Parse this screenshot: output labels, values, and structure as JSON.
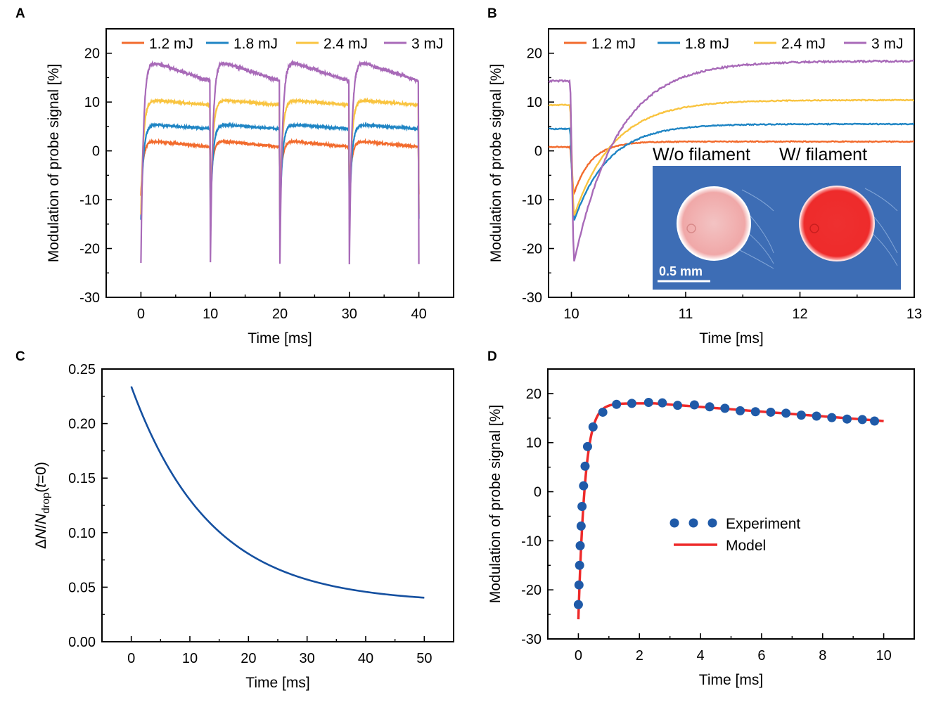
{
  "colors": {
    "e12": "#f26b2d",
    "e18": "#1f85c4",
    "e24": "#f9c440",
    "e30": "#a86ab8",
    "experiment": "#1f5aa8",
    "model": "#ee2a2a",
    "curveC": "#1550a0",
    "insetBg": "#3f6fb6"
  },
  "panels": {
    "A": {
      "label": "A"
    },
    "B": {
      "label": "B"
    },
    "C": {
      "label": "C"
    },
    "D": {
      "label": "D"
    }
  },
  "legendAB": [
    "1.2 mJ",
    "1.8 mJ",
    "2.4 mJ",
    "3 mJ"
  ],
  "inset": {
    "left_title": "W/o filament",
    "right_title": "W/ filament",
    "scale_label": "0.5 mm"
  },
  "chart_data": [
    {
      "id": "A",
      "type": "line",
      "title": "",
      "xlabel": "Time [ms]",
      "ylabel": "Modulation of probe signal [%]",
      "xlim": [
        -5,
        45
      ],
      "ylim": [
        -30,
        25
      ],
      "xticks": [
        0,
        10,
        20,
        30,
        40
      ],
      "yticks": [
        -30,
        -20,
        -10,
        0,
        10,
        20
      ],
      "period_ms": 10,
      "num_periods": 4,
      "legend": "top",
      "series": [
        {
          "name": "1.2 mJ",
          "color_key": "e12",
          "dip": -9,
          "peak": 2.0,
          "end": 0.8
        },
        {
          "name": "1.8 mJ",
          "color_key": "e18",
          "dip": -14,
          "peak": 5.4,
          "end": 4.5
        },
        {
          "name": "2.4 mJ",
          "color_key": "e24",
          "dip": -13,
          "peak": 10.4,
          "end": 9.4
        },
        {
          "name": "3 mJ",
          "color_key": "e30",
          "dip": -23,
          "peak": 18.3,
          "end": 14.3
        }
      ]
    },
    {
      "id": "B",
      "type": "line",
      "title": "",
      "xlabel": "Time [ms]",
      "ylabel": "Modulation of probe signal [%]",
      "xlim": [
        9.8,
        13
      ],
      "ylim": [
        -30,
        25
      ],
      "xticks": [
        10,
        11,
        12,
        13
      ],
      "yticks": [
        -30,
        -20,
        -10,
        0,
        10,
        20
      ],
      "legend": "top",
      "series": [
        {
          "name": "1.2 mJ",
          "color_key": "e12",
          "pre": 0.8,
          "dip": -9,
          "final": 1.9,
          "tau": 0.15
        },
        {
          "name": "1.8 mJ",
          "color_key": "e18",
          "pre": 4.5,
          "dip": -14.5,
          "final": 5.5,
          "tau": 0.3
        },
        {
          "name": "2.4 mJ",
          "color_key": "e24",
          "pre": 9.4,
          "dip": -13.5,
          "final": 10.4,
          "tau": 0.35
        },
        {
          "name": "3 mJ",
          "color_key": "e30",
          "pre": 14.3,
          "dip": -23.2,
          "final": 18.4,
          "tau": 0.38
        }
      ]
    },
    {
      "id": "C",
      "type": "line",
      "title": "",
      "xlabel": "Time [ms]",
      "ylabel": "ΔN/N_drop (t=0)",
      "xlim": [
        -5,
        55
      ],
      "ylim": [
        0.0,
        0.25
      ],
      "xticks": [
        0,
        10,
        20,
        30,
        40,
        50
      ],
      "yticks": [
        0.0,
        0.05,
        0.1,
        0.15,
        0.2,
        0.25
      ],
      "ytick_labels": [
        "0.00",
        "0.05",
        "0.10",
        "0.15",
        "0.20",
        "0.25"
      ],
      "series": [
        {
          "name": "ΔN/N_drop",
          "color_key": "curveC",
          "x": [
            0,
            5,
            10,
            15,
            20,
            25,
            30,
            35,
            40,
            45,
            50
          ],
          "y": [
            0.234,
            0.18,
            0.14,
            0.112,
            0.091,
            0.075,
            0.063,
            0.055,
            0.049,
            0.044,
            0.041
          ]
        }
      ]
    },
    {
      "id": "D",
      "type": "scatter",
      "title": "",
      "xlabel": "Time [ms]",
      "ylabel": "Modulation of probe signal [%]",
      "xlim": [
        -1,
        11
      ],
      "ylim": [
        -30,
        25
      ],
      "xticks": [
        0,
        2,
        4,
        6,
        8,
        10
      ],
      "yticks": [
        -30,
        -20,
        -10,
        0,
        10,
        20
      ],
      "legend": "center-right",
      "series": [
        {
          "name": "Experiment",
          "kind": "scatter",
          "color_key": "experiment",
          "x": [
            0.0,
            0.02,
            0.04,
            0.06,
            0.09,
            0.12,
            0.17,
            0.22,
            0.3,
            0.48,
            0.8,
            1.25,
            1.75,
            2.3,
            2.75,
            3.25,
            3.8,
            4.3,
            4.8,
            5.3,
            5.8,
            6.3,
            6.8,
            7.3,
            7.8,
            8.3,
            8.8,
            9.3,
            9.7
          ],
          "y": [
            -23,
            -19,
            -15,
            -11,
            -7,
            -3,
            1.2,
            5.2,
            9.2,
            13.2,
            16.2,
            17.8,
            18.0,
            18.2,
            18.1,
            17.6,
            17.7,
            17.3,
            17.0,
            16.5,
            16.3,
            16.2,
            16.0,
            15.6,
            15.4,
            15.1,
            14.8,
            14.7,
            14.4
          ]
        },
        {
          "name": "Model",
          "kind": "line",
          "color_key": "model",
          "x": [
            0,
            0.05,
            0.1,
            0.2,
            0.3,
            0.5,
            0.75,
            1.0,
            1.5,
            2.0,
            2.5,
            3,
            4,
            5,
            6,
            7,
            8,
            9,
            10
          ],
          "y": [
            -26,
            -14,
            -6,
            2.5,
            7.5,
            12.5,
            15.6,
            16.8,
            17.6,
            17.8,
            17.8,
            17.6,
            17.2,
            16.6,
            16.0,
            15.2,
            14.5,
            13.9,
            13.3
          ]
        }
      ]
    }
  ]
}
